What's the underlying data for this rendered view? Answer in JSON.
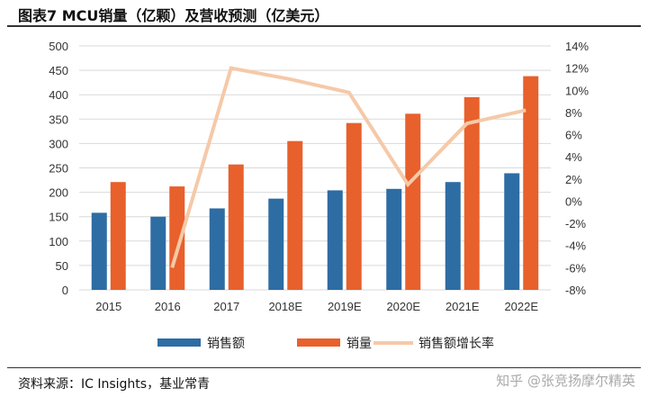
{
  "title": "图表7 MCU销量（亿颗）及营收预测（亿美元）",
  "footer": "资料来源：IC Insights，基业常青",
  "watermark": "知乎 @张竞扬摩尔精英",
  "chart_data": {
    "type": "bar",
    "categories": [
      "2015",
      "2016",
      "2017",
      "2018E",
      "2019E",
      "2020E",
      "2021E",
      "2022E"
    ],
    "series": [
      {
        "name": "销售额",
        "type": "bar",
        "color": "#2e6ca4",
        "values": [
          158,
          150,
          167,
          187,
          204,
          207,
          221,
          239
        ]
      },
      {
        "name": "销量",
        "type": "bar",
        "color": "#e8602c",
        "values": [
          221,
          212,
          257,
          305,
          342,
          361,
          395,
          438
        ]
      },
      {
        "name": "销售额增长率",
        "type": "line",
        "axis": "right",
        "color": "#f5c9a8",
        "values": [
          null,
          -6,
          12,
          11,
          9.8,
          1.5,
          7,
          8.2
        ]
      }
    ],
    "ylim": [
      0,
      500
    ],
    "yticks": [
      0,
      50,
      100,
      150,
      200,
      250,
      300,
      350,
      400,
      450,
      500
    ],
    "y2lim": [
      -8,
      14
    ],
    "y2ticks": [
      "-8%",
      "-6%",
      "-4%",
      "-2%",
      "0%",
      "2%",
      "4%",
      "6%",
      "8%",
      "10%",
      "12%",
      "14%"
    ],
    "grid": true,
    "legend": "bottom"
  }
}
